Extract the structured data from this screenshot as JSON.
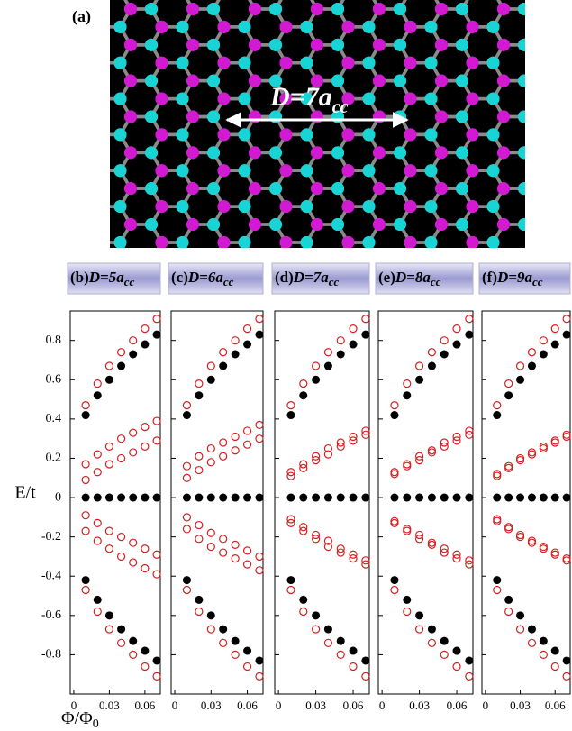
{
  "figure_label": "(a)",
  "lattice_label": {
    "main": "D=7a",
    "sub": "cc"
  },
  "y_label": "E/t",
  "x_label": {
    "main": "Φ/Φ",
    "sub": "0"
  },
  "chart_data": [
    {
      "type": "scatter",
      "label": "(b)",
      "title": "D=5a",
      "title_subscript": "cc",
      "xlim": [
        -0.003,
        0.073
      ],
      "xticks": [
        0,
        0.03,
        0.06
      ],
      "ylim": [
        -1.0,
        0.95
      ],
      "yticks": [
        -0.8,
        -0.6,
        -0.4,
        -0.2,
        0,
        0.2,
        0.4,
        0.6,
        0.8
      ],
      "x": [
        0.01,
        0.02,
        0.03,
        0.04,
        0.05,
        0.06,
        0.07
      ],
      "series": [
        {
          "color": "#000000",
          "marker": "filled",
          "values": [
            0,
            0,
            0,
            0,
            0,
            0,
            0
          ]
        },
        {
          "color": "#d42020",
          "marker": "open",
          "values": [
            0.17,
            0.22,
            0.26,
            0.3,
            0.33,
            0.36,
            0.39
          ]
        },
        {
          "color": "#d42020",
          "marker": "open",
          "values": [
            0.09,
            0.13,
            0.17,
            0.2,
            0.23,
            0.26,
            0.29
          ]
        },
        {
          "color": "#000000",
          "marker": "filled",
          "values": [
            0.42,
            0.52,
            0.6,
            0.67,
            0.73,
            0.78,
            0.83
          ]
        },
        {
          "color": "#d42020",
          "marker": "open",
          "values": [
            0.47,
            0.58,
            0.67,
            0.74,
            0.8,
            0.86,
            0.91
          ]
        },
        {
          "color": "#d42020",
          "marker": "open",
          "values": [
            -0.17,
            -0.22,
            -0.26,
            -0.3,
            -0.33,
            -0.36,
            -0.39
          ]
        },
        {
          "color": "#d42020",
          "marker": "open",
          "values": [
            -0.09,
            -0.13,
            -0.17,
            -0.2,
            -0.23,
            -0.26,
            -0.29
          ]
        },
        {
          "color": "#000000",
          "marker": "filled",
          "values": [
            -0.42,
            -0.52,
            -0.6,
            -0.67,
            -0.73,
            -0.78,
            -0.83
          ]
        },
        {
          "color": "#d42020",
          "marker": "open",
          "values": [
            -0.47,
            -0.58,
            -0.67,
            -0.74,
            -0.8,
            -0.86,
            -0.91
          ]
        }
      ]
    },
    {
      "type": "scatter",
      "label": "(c)",
      "title": "D=6a",
      "title_subscript": "cc",
      "xlim": [
        -0.003,
        0.073
      ],
      "xticks": [
        0,
        0.03,
        0.06
      ],
      "ylim": [
        -1.0,
        0.95
      ],
      "yticks": [
        -0.8,
        -0.6,
        -0.4,
        -0.2,
        0,
        0.2,
        0.4,
        0.6,
        0.8
      ],
      "x": [
        0.01,
        0.02,
        0.03,
        0.04,
        0.05,
        0.06,
        0.07
      ],
      "series": [
        {
          "color": "#000000",
          "marker": "filled",
          "values": [
            0,
            0,
            0,
            0,
            0,
            0,
            0
          ]
        },
        {
          "color": "#d42020",
          "marker": "open",
          "values": [
            0.16,
            0.21,
            0.25,
            0.28,
            0.31,
            0.34,
            0.37
          ]
        },
        {
          "color": "#d42020",
          "marker": "open",
          "values": [
            0.1,
            0.14,
            0.18,
            0.21,
            0.24,
            0.27,
            0.3
          ]
        },
        {
          "color": "#000000",
          "marker": "filled",
          "values": [
            0.42,
            0.52,
            0.6,
            0.67,
            0.73,
            0.78,
            0.83
          ]
        },
        {
          "color": "#d42020",
          "marker": "open",
          "values": [
            0.47,
            0.58,
            0.67,
            0.74,
            0.8,
            0.86,
            0.91
          ]
        },
        {
          "color": "#d42020",
          "marker": "open",
          "values": [
            -0.16,
            -0.21,
            -0.25,
            -0.28,
            -0.31,
            -0.34,
            -0.37
          ]
        },
        {
          "color": "#d42020",
          "marker": "open",
          "values": [
            -0.1,
            -0.14,
            -0.18,
            -0.21,
            -0.24,
            -0.27,
            -0.3
          ]
        },
        {
          "color": "#000000",
          "marker": "filled",
          "values": [
            -0.42,
            -0.52,
            -0.6,
            -0.67,
            -0.73,
            -0.78,
            -0.83
          ]
        },
        {
          "color": "#d42020",
          "marker": "open",
          "values": [
            -0.47,
            -0.58,
            -0.67,
            -0.74,
            -0.8,
            -0.86,
            -0.91
          ]
        }
      ]
    },
    {
      "type": "scatter",
      "label": "(d)",
      "title": "D=7a",
      "title_subscript": "cc",
      "xlim": [
        -0.003,
        0.073
      ],
      "xticks": [
        0,
        0.03,
        0.06
      ],
      "ylim": [
        -1.0,
        0.95
      ],
      "yticks": [
        -0.8,
        -0.6,
        -0.4,
        -0.2,
        0,
        0.2,
        0.4,
        0.6,
        0.8
      ],
      "x": [
        0.01,
        0.02,
        0.03,
        0.04,
        0.05,
        0.06,
        0.07
      ],
      "series": [
        {
          "color": "#000000",
          "marker": "filled",
          "values": [
            0,
            0,
            0,
            0,
            0,
            0,
            0
          ]
        },
        {
          "color": "#d42020",
          "marker": "open",
          "values": [
            0.13,
            0.17,
            0.21,
            0.25,
            0.28,
            0.31,
            0.34
          ]
        },
        {
          "color": "#d42020",
          "marker": "open",
          "values": [
            0.11,
            0.15,
            0.19,
            0.22,
            0.26,
            0.29,
            0.32
          ]
        },
        {
          "color": "#000000",
          "marker": "filled",
          "values": [
            0.42,
            0.52,
            0.6,
            0.67,
            0.73,
            0.78,
            0.83
          ]
        },
        {
          "color": "#d42020",
          "marker": "open",
          "values": [
            0.47,
            0.58,
            0.67,
            0.74,
            0.8,
            0.86,
            0.91
          ]
        },
        {
          "color": "#d42020",
          "marker": "open",
          "values": [
            -0.13,
            -0.17,
            -0.21,
            -0.25,
            -0.28,
            -0.31,
            -0.34
          ]
        },
        {
          "color": "#d42020",
          "marker": "open",
          "values": [
            -0.11,
            -0.15,
            -0.19,
            -0.22,
            -0.26,
            -0.29,
            -0.32
          ]
        },
        {
          "color": "#000000",
          "marker": "filled",
          "values": [
            -0.42,
            -0.52,
            -0.6,
            -0.67,
            -0.73,
            -0.78,
            -0.83
          ]
        },
        {
          "color": "#d42020",
          "marker": "open",
          "values": [
            -0.47,
            -0.58,
            -0.67,
            -0.74,
            -0.8,
            -0.86,
            -0.91
          ]
        }
      ]
    },
    {
      "type": "scatter",
      "label": "(e)",
      "title": "D=8a",
      "title_subscript": "cc",
      "xlim": [
        -0.003,
        0.073
      ],
      "xticks": [
        0,
        0.03,
        0.06
      ],
      "ylim": [
        -1.0,
        0.95
      ],
      "yticks": [
        -0.8,
        -0.6,
        -0.4,
        -0.2,
        0,
        0.2,
        0.4,
        0.6,
        0.8
      ],
      "x": [
        0.01,
        0.02,
        0.03,
        0.04,
        0.05,
        0.06,
        0.07
      ],
      "series": [
        {
          "color": "#000000",
          "marker": "filled",
          "values": [
            0,
            0,
            0,
            0,
            0,
            0,
            0
          ]
        },
        {
          "color": "#d42020",
          "marker": "open",
          "values": [
            0.13,
            0.17,
            0.21,
            0.24,
            0.28,
            0.31,
            0.34
          ]
        },
        {
          "color": "#d42020",
          "marker": "open",
          "values": [
            0.12,
            0.16,
            0.19,
            0.23,
            0.26,
            0.29,
            0.32
          ]
        },
        {
          "color": "#000000",
          "marker": "filled",
          "values": [
            0.42,
            0.52,
            0.6,
            0.67,
            0.73,
            0.78,
            0.83
          ]
        },
        {
          "color": "#d42020",
          "marker": "open",
          "values": [
            0.47,
            0.58,
            0.67,
            0.74,
            0.8,
            0.86,
            0.91
          ]
        },
        {
          "color": "#d42020",
          "marker": "open",
          "values": [
            -0.13,
            -0.17,
            -0.21,
            -0.24,
            -0.28,
            -0.31,
            -0.34
          ]
        },
        {
          "color": "#d42020",
          "marker": "open",
          "values": [
            -0.12,
            -0.16,
            -0.19,
            -0.23,
            -0.26,
            -0.29,
            -0.32
          ]
        },
        {
          "color": "#000000",
          "marker": "filled",
          "values": [
            -0.42,
            -0.52,
            -0.6,
            -0.67,
            -0.73,
            -0.78,
            -0.83
          ]
        },
        {
          "color": "#d42020",
          "marker": "open",
          "values": [
            -0.47,
            -0.58,
            -0.67,
            -0.74,
            -0.8,
            -0.86,
            -0.91
          ]
        }
      ]
    },
    {
      "type": "scatter",
      "label": "(f)",
      "title": "D=9a",
      "title_subscript": "cc",
      "xlim": [
        -0.003,
        0.073
      ],
      "xticks": [
        0,
        0.03,
        0.06
      ],
      "ylim": [
        -1.0,
        0.95
      ],
      "yticks": [
        -0.8,
        -0.6,
        -0.4,
        -0.2,
        0,
        0.2,
        0.4,
        0.6,
        0.8
      ],
      "x": [
        0.01,
        0.02,
        0.03,
        0.04,
        0.05,
        0.06,
        0.07
      ],
      "series": [
        {
          "color": "#000000",
          "marker": "filled",
          "values": [
            0,
            0,
            0,
            0,
            0,
            0,
            0
          ]
        },
        {
          "color": "#d42020",
          "marker": "open",
          "values": [
            0.12,
            0.16,
            0.2,
            0.23,
            0.26,
            0.29,
            0.32
          ]
        },
        {
          "color": "#d42020",
          "marker": "open",
          "values": [
            0.11,
            0.15,
            0.19,
            0.22,
            0.25,
            0.28,
            0.31
          ]
        },
        {
          "color": "#000000",
          "marker": "filled",
          "values": [
            0.42,
            0.52,
            0.6,
            0.67,
            0.73,
            0.78,
            0.83
          ]
        },
        {
          "color": "#d42020",
          "marker": "open",
          "values": [
            0.47,
            0.58,
            0.67,
            0.74,
            0.8,
            0.86,
            0.91
          ]
        },
        {
          "color": "#d42020",
          "marker": "open",
          "values": [
            -0.12,
            -0.16,
            -0.2,
            -0.23,
            -0.26,
            -0.29,
            -0.32
          ]
        },
        {
          "color": "#d42020",
          "marker": "open",
          "values": [
            -0.11,
            -0.15,
            -0.19,
            -0.22,
            -0.25,
            -0.28,
            -0.31
          ]
        },
        {
          "color": "#000000",
          "marker": "filled",
          "values": [
            -0.42,
            -0.52,
            -0.6,
            -0.67,
            -0.73,
            -0.78,
            -0.83
          ]
        },
        {
          "color": "#d42020",
          "marker": "open",
          "values": [
            -0.47,
            -0.58,
            -0.67,
            -0.74,
            -0.8,
            -0.86,
            -0.91
          ]
        }
      ]
    }
  ]
}
